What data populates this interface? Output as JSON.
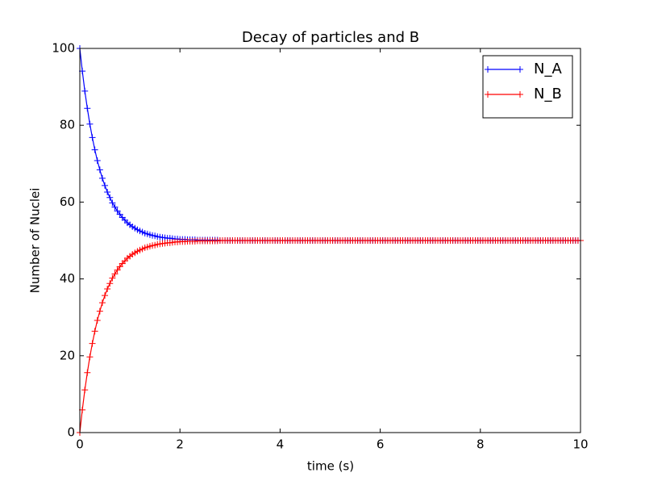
{
  "chart_data": {
    "type": "line",
    "title": "Decay of particles and B",
    "xlabel": "time (s)",
    "ylabel": "Number of Nuclei",
    "x": [
      0,
      0.05,
      0.1,
      0.15,
      0.2,
      0.25,
      0.3,
      0.35,
      0.4,
      0.45,
      0.5,
      0.55,
      0.6,
      0.65,
      0.7,
      0.75,
      0.8,
      0.85,
      0.9,
      0.95,
      1,
      1.05,
      1.1,
      1.15,
      1.2,
      1.25,
      1.3,
      1.35,
      1.4,
      1.45,
      1.5,
      1.55,
      1.6,
      1.65,
      1.7,
      1.75,
      1.8,
      1.85,
      1.9,
      1.95,
      2,
      2.05,
      2.1,
      2.15,
      2.2,
      2.25,
      2.3,
      2.35,
      2.4,
      2.45,
      2.5,
      2.55,
      2.6,
      2.65,
      2.7,
      2.75,
      2.8,
      2.85,
      2.9,
      2.95,
      3,
      3.05,
      3.1,
      3.15,
      3.2,
      3.25,
      3.3,
      3.35,
      3.4,
      3.45,
      3.5,
      3.55,
      3.6,
      3.65,
      3.7,
      3.75,
      3.8,
      3.85,
      3.9,
      3.95,
      4,
      4.05,
      4.1,
      4.15,
      4.2,
      4.25,
      4.3,
      4.35,
      4.4,
      4.45,
      4.5,
      4.55,
      4.6,
      4.65,
      4.7,
      4.75,
      4.8,
      4.85,
      4.9,
      4.95,
      5,
      5.05,
      5.1,
      5.15,
      5.2,
      5.25,
      5.3,
      5.35,
      5.4,
      5.45,
      5.5,
      5.55,
      5.6,
      5.65,
      5.7,
      5.75,
      5.8,
      5.85,
      5.9,
      5.95,
      6,
      6.05,
      6.1,
      6.15,
      6.2,
      6.25,
      6.3,
      6.35,
      6.4,
      6.45,
      6.5,
      6.55,
      6.6,
      6.65,
      6.7,
      6.75,
      6.8,
      6.85,
      6.9,
      6.95,
      7,
      7.05,
      7.1,
      7.15,
      7.2,
      7.25,
      7.3,
      7.35,
      7.4,
      7.45,
      7.5,
      7.55,
      7.6,
      7.65,
      7.7,
      7.75,
      7.8,
      7.85,
      7.9,
      7.95,
      8,
      8.05,
      8.1,
      8.15,
      8.2,
      8.25,
      8.3,
      8.35,
      8.4,
      8.45,
      8.5,
      8.55,
      8.6,
      8.65,
      8.7,
      8.75,
      8.8,
      8.85,
      8.9,
      8.95,
      9,
      9.05,
      9.1,
      9.15,
      9.2,
      9.25,
      9.3,
      9.35,
      9.4,
      9.45,
      9.5,
      9.55,
      9.6,
      9.65,
      9.7,
      9.75,
      9.8,
      9.85,
      9.9,
      9.95,
      10
    ],
    "series": [
      {
        "name": "N_A",
        "color": "#0000ff",
        "values": [
          100,
          94.1,
          88.9,
          84.4,
          80.3,
          76.8,
          73.6,
          70.8,
          68.4,
          66.2,
          64.3,
          62.6,
          61.2,
          59.8,
          58.7,
          57.7,
          56.8,
          56,
          55.3,
          54.6,
          54.1,
          53.6,
          53.2,
          52.8,
          52.5,
          52.2,
          51.9,
          51.7,
          51.5,
          51.3,
          51.2,
          51,
          50.9,
          50.8,
          50.7,
          50.6,
          50.6,
          50.5,
          50.4,
          50.4,
          50.3,
          50.3,
          50.3,
          50.2,
          50.2,
          50.2,
          50.2,
          50.1,
          50.1,
          50.1,
          50.1,
          50.1,
          50.1,
          50.1,
          50.1,
          50.1,
          50,
          50,
          50,
          50,
          50,
          50,
          50,
          50,
          50,
          50,
          50,
          50,
          50,
          50,
          50,
          50,
          50,
          50,
          50,
          50,
          50,
          50,
          50,
          50,
          50,
          50,
          50,
          50,
          50,
          50,
          50,
          50,
          50,
          50,
          50,
          50,
          50,
          50,
          50,
          50,
          50,
          50,
          50,
          50,
          50,
          50,
          50,
          50,
          50,
          50,
          50,
          50,
          50,
          50,
          50,
          50,
          50,
          50,
          50,
          50,
          50,
          50,
          50,
          50,
          50,
          50,
          50,
          50,
          50,
          50,
          50,
          50,
          50,
          50,
          50,
          50,
          50,
          50,
          50,
          50,
          50,
          50,
          50,
          50,
          50,
          50,
          50,
          50,
          50,
          50,
          50,
          50,
          50,
          50,
          50,
          50,
          50,
          50,
          50,
          50,
          50,
          50,
          50,
          50,
          50,
          50,
          50,
          50,
          50,
          50,
          50,
          50,
          50,
          50,
          50,
          50,
          50,
          50,
          50,
          50,
          50,
          50,
          50,
          50,
          50,
          50,
          50,
          50,
          50,
          50,
          50,
          50,
          50,
          50,
          50,
          50,
          50,
          50,
          50,
          50,
          50,
          50,
          50,
          50,
          50
        ]
      },
      {
        "name": "N_B",
        "color": "#ff0000",
        "values": [
          0,
          5.9,
          11.1,
          15.6,
          19.7,
          23.2,
          26.4,
          29.2,
          31.6,
          33.8,
          35.7,
          37.4,
          38.8,
          40.2,
          41.3,
          42.3,
          43.2,
          44,
          44.7,
          45.4,
          45.9,
          46.4,
          46.8,
          47.2,
          47.5,
          47.8,
          48.1,
          48.3,
          48.5,
          48.7,
          48.8,
          49,
          49.1,
          49.2,
          49.3,
          49.4,
          49.4,
          49.5,
          49.6,
          49.6,
          49.7,
          49.7,
          49.7,
          49.8,
          49.8,
          49.8,
          49.8,
          49.9,
          49.9,
          49.9,
          49.9,
          49.9,
          49.9,
          49.9,
          49.9,
          49.9,
          50,
          50,
          50,
          50,
          50,
          50,
          50,
          50,
          50,
          50,
          50,
          50,
          50,
          50,
          50,
          50,
          50,
          50,
          50,
          50,
          50,
          50,
          50,
          50,
          50,
          50,
          50,
          50,
          50,
          50,
          50,
          50,
          50,
          50,
          50,
          50,
          50,
          50,
          50,
          50,
          50,
          50,
          50,
          50,
          50,
          50,
          50,
          50,
          50,
          50,
          50,
          50,
          50,
          50,
          50,
          50,
          50,
          50,
          50,
          50,
          50,
          50,
          50,
          50,
          50,
          50,
          50,
          50,
          50,
          50,
          50,
          50,
          50,
          50,
          50,
          50,
          50,
          50,
          50,
          50,
          50,
          50,
          50,
          50,
          50,
          50,
          50,
          50,
          50,
          50,
          50,
          50,
          50,
          50,
          50,
          50,
          50,
          50,
          50,
          50,
          50,
          50,
          50,
          50,
          50,
          50,
          50,
          50,
          50,
          50,
          50,
          50,
          50,
          50,
          50,
          50,
          50,
          50,
          50,
          50,
          50,
          50,
          50,
          50,
          50,
          50,
          50,
          50,
          50,
          50,
          50,
          50,
          50,
          50,
          50,
          50,
          50,
          50,
          50,
          50,
          50,
          50,
          50,
          50,
          50
        ]
      }
    ],
    "xlim": [
      0,
      10
    ],
    "xticks": [
      0,
      2,
      4,
      6,
      8,
      10
    ],
    "ylim": [
      0,
      100
    ],
    "yticks": [
      0,
      20,
      40,
      60,
      80,
      100
    ],
    "legend": "upper right"
  }
}
